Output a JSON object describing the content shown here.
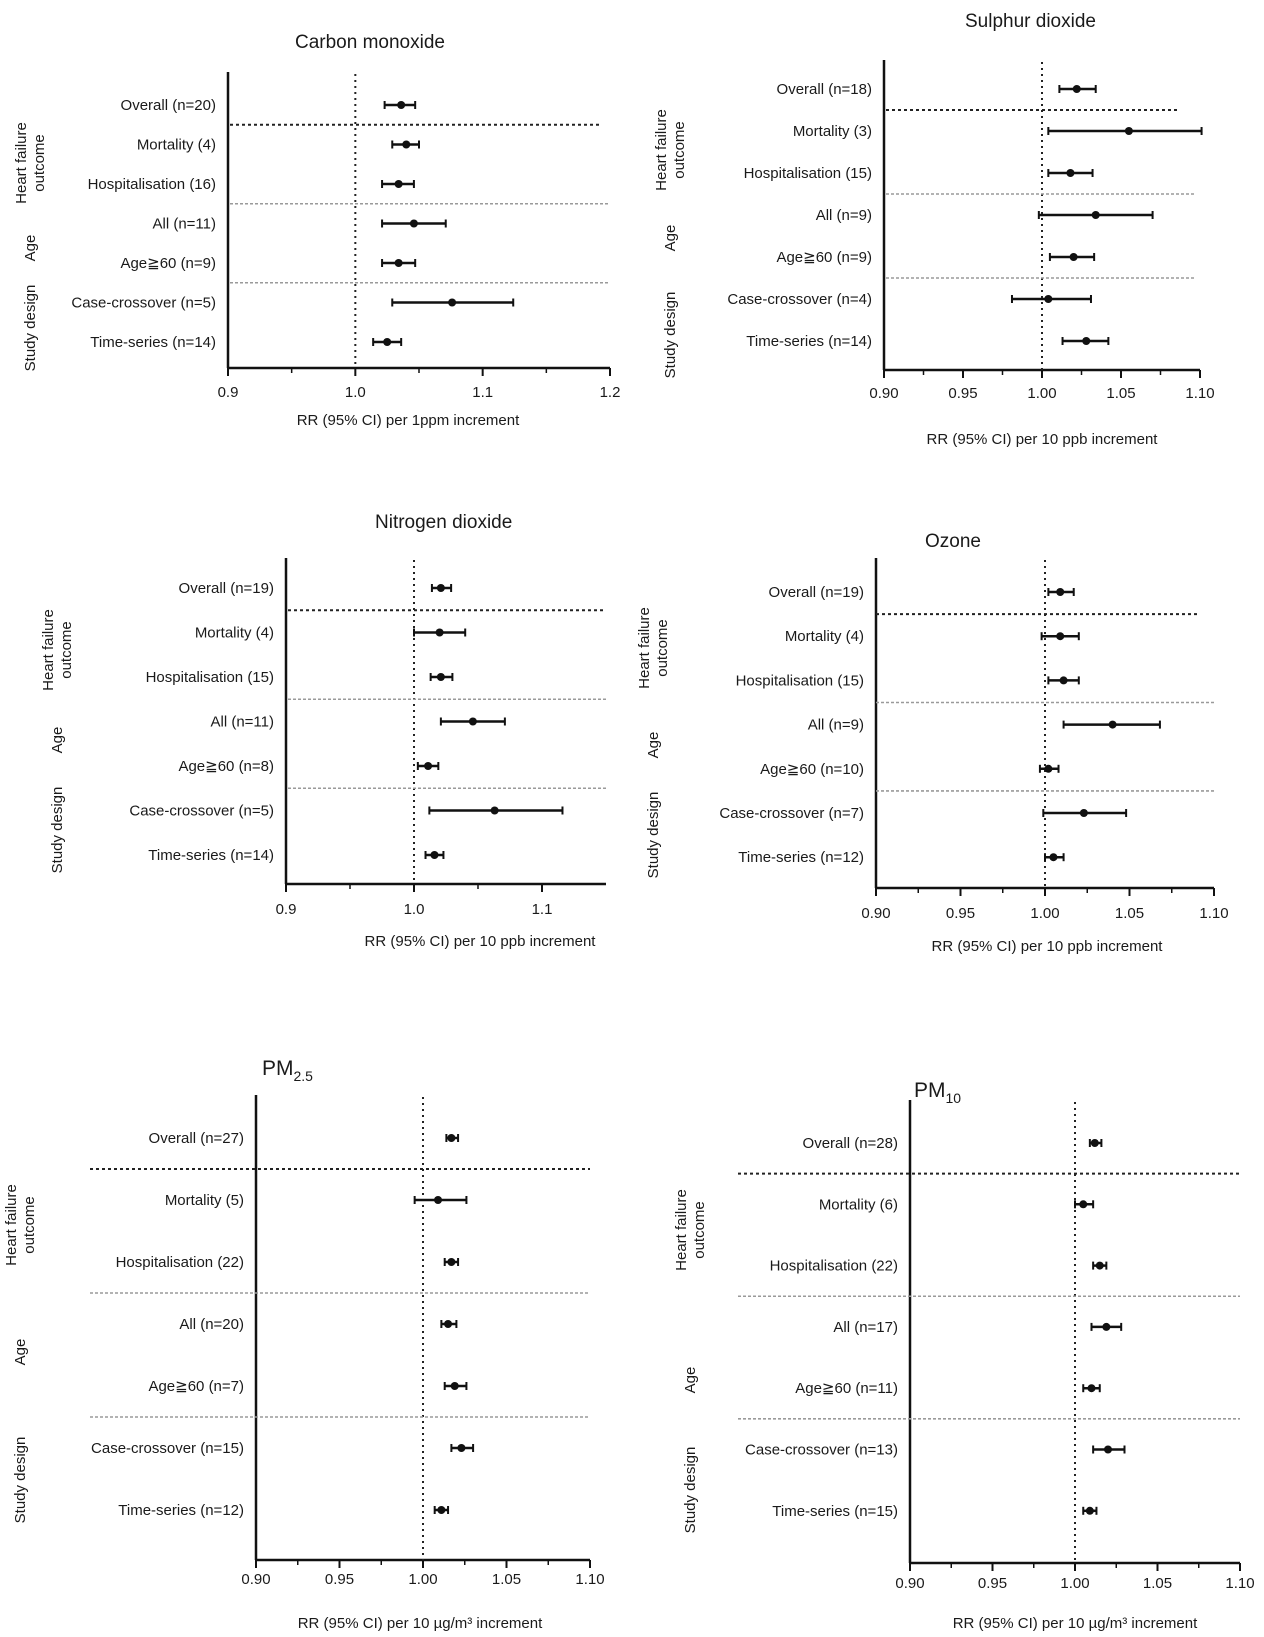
{
  "chart_data": [
    {
      "type": "forest",
      "title": "Carbon monoxide",
      "xlabel": "RR (95% CI) per 1ppm increment",
      "xlim": [
        0.9,
        1.2
      ],
      "xticks": [
        0.9,
        1.0,
        1.1,
        1.2
      ],
      "xtick_labels": [
        "0.9",
        "1.0",
        "1.1",
        "1.2"
      ],
      "reference_line": 1.0,
      "groups": [
        {
          "label_lines": [
            "Heart failure",
            "outcome"
          ],
          "rows": [
            1,
            2
          ]
        },
        {
          "label_lines": [
            "Age"
          ],
          "rows": [
            3,
            4
          ]
        },
        {
          "label_lines": [
            "Study design"
          ],
          "rows": [
            5,
            6
          ]
        }
      ],
      "rows": [
        {
          "label": "Overall (n=20)",
          "estimate": 1.036,
          "lower": 1.023,
          "upper": 1.047
        },
        {
          "label": "Mortality (4)",
          "estimate": 1.04,
          "lower": 1.029,
          "upper": 1.05
        },
        {
          "label": "Hospitalisation (16)",
          "estimate": 1.034,
          "lower": 1.021,
          "upper": 1.046
        },
        {
          "label": "All (n=11)",
          "estimate": 1.046,
          "lower": 1.021,
          "upper": 1.071
        },
        {
          "label": "Age≧60 (n=9)",
          "estimate": 1.034,
          "lower": 1.021,
          "upper": 1.047
        },
        {
          "label": "Case-crossover (n=5)",
          "estimate": 1.076,
          "lower": 1.029,
          "upper": 1.124
        },
        {
          "label": "Time-series (n=14)",
          "estimate": 1.025,
          "lower": 1.014,
          "upper": 1.036
        }
      ]
    },
    {
      "type": "forest",
      "title": "Sulphur dioxide",
      "xlabel": "RR (95% CI) per 10 ppb increment",
      "xlim": [
        0.9,
        1.1
      ],
      "xticks": [
        0.9,
        0.95,
        1.0,
        1.05,
        1.1
      ],
      "xtick_labels": [
        "0.90",
        "0.95",
        "1.00",
        "1.05",
        "1.10"
      ],
      "reference_line": 1.0,
      "groups": [
        {
          "label_lines": [
            "Heart failure",
            "outcome"
          ],
          "rows": [
            1,
            2
          ]
        },
        {
          "label_lines": [
            "Age"
          ],
          "rows": [
            3,
            4
          ]
        },
        {
          "label_lines": [
            "Study design"
          ],
          "rows": [
            5,
            6
          ]
        }
      ],
      "rows": [
        {
          "label": "Overall (n=18)",
          "estimate": 1.022,
          "lower": 1.011,
          "upper": 1.034
        },
        {
          "label": "Mortality (3)",
          "estimate": 1.055,
          "lower": 1.004,
          "upper": 1.101
        },
        {
          "label": "Hospitalisation (15)",
          "estimate": 1.018,
          "lower": 1.004,
          "upper": 1.032
        },
        {
          "label": "All (n=9)",
          "estimate": 1.034,
          "lower": 0.998,
          "upper": 1.07
        },
        {
          "label": "Age≧60 (n=9)",
          "estimate": 1.02,
          "lower": 1.005,
          "upper": 1.033
        },
        {
          "label": "Case-crossover (n=4)",
          "estimate": 1.004,
          "lower": 0.981,
          "upper": 1.031
        },
        {
          "label": "Time-series (n=14)",
          "estimate": 1.028,
          "lower": 1.013,
          "upper": 1.042
        }
      ]
    },
    {
      "type": "forest",
      "title": "Nitrogen dioxide",
      "xlabel": "RR (95% CI) per 10 ppb increment",
      "xlim": [
        0.9,
        1.15
      ],
      "xticks": [
        0.9,
        1.0,
        1.1
      ],
      "xtick_labels": [
        "0.9",
        "1.0",
        "1.1"
      ],
      "reference_line": 1.0,
      "groups": [
        {
          "label_lines": [
            "Heart failure",
            "outcome"
          ],
          "rows": [
            1,
            2
          ]
        },
        {
          "label_lines": [
            "Age"
          ],
          "rows": [
            3,
            4
          ]
        },
        {
          "label_lines": [
            "Study design"
          ],
          "rows": [
            5,
            6
          ]
        }
      ],
      "rows": [
        {
          "label": "Overall (n=19)",
          "estimate": 1.021,
          "lower": 1.014,
          "upper": 1.029
        },
        {
          "label": "Mortality (4)",
          "estimate": 1.02,
          "lower": 1.0,
          "upper": 1.04
        },
        {
          "label": "Hospitalisation (15)",
          "estimate": 1.021,
          "lower": 1.013,
          "upper": 1.03
        },
        {
          "label": "All (n=11)",
          "estimate": 1.046,
          "lower": 1.021,
          "upper": 1.071
        },
        {
          "label": "Age≧60 (n=8)",
          "estimate": 1.011,
          "lower": 1.003,
          "upper": 1.019
        },
        {
          "label": "Case-crossover (n=5)",
          "estimate": 1.063,
          "lower": 1.012,
          "upper": 1.116
        },
        {
          "label": "Time-series (n=14)",
          "estimate": 1.016,
          "lower": 1.009,
          "upper": 1.023
        }
      ]
    },
    {
      "type": "forest",
      "title": "Ozone",
      "xlabel": "RR (95% CI) per 10 ppb increment",
      "xlim": [
        0.9,
        1.1
      ],
      "xticks": [
        0.9,
        0.95,
        1.0,
        1.05,
        1.1
      ],
      "xtick_labels": [
        "0.90",
        "0.95",
        "1.00",
        "1.05",
        "1.10"
      ],
      "reference_line": 1.0,
      "groups": [
        {
          "label_lines": [
            "Heart failure",
            "outcome"
          ],
          "rows": [
            1,
            2
          ]
        },
        {
          "label_lines": [
            "Age"
          ],
          "rows": [
            3,
            4
          ]
        },
        {
          "label_lines": [
            "Study design"
          ],
          "rows": [
            5,
            6
          ]
        }
      ],
      "rows": [
        {
          "label": "Overall (n=19)",
          "estimate": 1.009,
          "lower": 1.002,
          "upper": 1.017
        },
        {
          "label": "Mortality (4)",
          "estimate": 1.009,
          "lower": 0.998,
          "upper": 1.02
        },
        {
          "label": "Hospitalisation (15)",
          "estimate": 1.011,
          "lower": 1.002,
          "upper": 1.02
        },
        {
          "label": "All (n=9)",
          "estimate": 1.04,
          "lower": 1.011,
          "upper": 1.068
        },
        {
          "label": "Age≧60 (n=10)",
          "estimate": 1.002,
          "lower": 0.997,
          "upper": 1.008
        },
        {
          "label": "Case-crossover (n=7)",
          "estimate": 1.023,
          "lower": 0.999,
          "upper": 1.048
        },
        {
          "label": "Time-series (n=12)",
          "estimate": 1.005,
          "lower": 1.0,
          "upper": 1.011
        }
      ]
    },
    {
      "type": "forest",
      "title": "PM",
      "title_subscript": "2.5",
      "xlabel": "RR (95% CI) per 10 µg/m³ increment",
      "xlim": [
        0.9,
        1.1
      ],
      "xticks": [
        0.9,
        0.95,
        1.0,
        1.05,
        1.1
      ],
      "xtick_labels": [
        "0.90",
        "0.95",
        "1.00",
        "1.05",
        "1.10"
      ],
      "reference_line": 1.0,
      "groups": [
        {
          "label_lines": [
            "Heart failure",
            "outcome"
          ],
          "rows": [
            1,
            2
          ]
        },
        {
          "label_lines": [
            "Age"
          ],
          "rows": [
            3,
            4
          ]
        },
        {
          "label_lines": [
            "Study design"
          ],
          "rows": [
            5,
            6
          ]
        }
      ],
      "rows": [
        {
          "label": "Overall (n=27)",
          "estimate": 1.017,
          "lower": 1.014,
          "upper": 1.021
        },
        {
          "label": "Mortality (5)",
          "estimate": 1.009,
          "lower": 0.995,
          "upper": 1.026
        },
        {
          "label": "Hospitalisation (22)",
          "estimate": 1.017,
          "lower": 1.013,
          "upper": 1.021
        },
        {
          "label": "All (n=20)",
          "estimate": 1.015,
          "lower": 1.011,
          "upper": 1.02
        },
        {
          "label": "Age≧60 (n=7)",
          "estimate": 1.019,
          "lower": 1.013,
          "upper": 1.026
        },
        {
          "label": "Case-crossover (n=15)",
          "estimate": 1.023,
          "lower": 1.017,
          "upper": 1.03
        },
        {
          "label": "Time-series (n=12)",
          "estimate": 1.011,
          "lower": 1.007,
          "upper": 1.015
        }
      ]
    },
    {
      "type": "forest",
      "title": "PM",
      "title_subscript": "10",
      "xlabel": "RR (95% CI) per 10 µg/m³ increment",
      "xlim": [
        0.9,
        1.1
      ],
      "xticks": [
        0.9,
        0.95,
        1.0,
        1.05,
        1.1
      ],
      "xtick_labels": [
        "0.90",
        "0.95",
        "1.00",
        "1.05",
        "1.10"
      ],
      "reference_line": 1.0,
      "groups": [
        {
          "label_lines": [
            "Heart failure",
            "outcome"
          ],
          "rows": [
            1,
            2
          ]
        },
        {
          "label_lines": [
            "Age"
          ],
          "rows": [
            3,
            4
          ]
        },
        {
          "label_lines": [
            "Study design"
          ],
          "rows": [
            5,
            6
          ]
        }
      ],
      "rows": [
        {
          "label": "Overall (n=28)",
          "estimate": 1.012,
          "lower": 1.009,
          "upper": 1.016
        },
        {
          "label": "Mortality (6)",
          "estimate": 1.005,
          "lower": 1.0,
          "upper": 1.011
        },
        {
          "label": "Hospitalisation (22)",
          "estimate": 1.015,
          "lower": 1.011,
          "upper": 1.019
        },
        {
          "label": "All (n=17)",
          "estimate": 1.019,
          "lower": 1.01,
          "upper": 1.028
        },
        {
          "label": "Age≧60 (n=11)",
          "estimate": 1.01,
          "lower": 1.005,
          "upper": 1.015
        },
        {
          "label": "Case-crossover (n=13)",
          "estimate": 1.02,
          "lower": 1.011,
          "upper": 1.03
        },
        {
          "label": "Time-series (n=15)",
          "estimate": 1.009,
          "lower": 1.005,
          "upper": 1.013
        }
      ]
    }
  ]
}
